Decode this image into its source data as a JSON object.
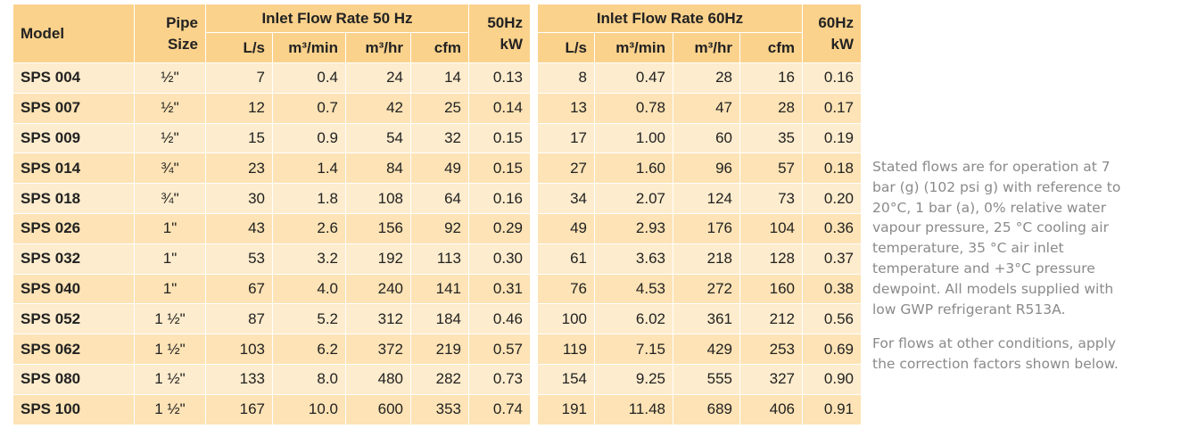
{
  "table": {
    "header": {
      "model": "Model",
      "pipe_size": "Pipe Size",
      "group_50": "Inlet Flow Rate 50 Hz",
      "kw_50": "50Hz kW",
      "group_60": "Inlet Flow Rate 60Hz",
      "kw_60": "60Hz kW",
      "units_50": [
        "L/s",
        "m³/min",
        "m³/hr",
        "cfm"
      ],
      "units_60": [
        "L/s",
        "m³/min",
        "m³/hr",
        "cfm"
      ]
    },
    "rows": [
      [
        "SPS 004",
        "½\"",
        "7",
        "0.4",
        "24",
        "14",
        "0.13",
        "8",
        "0.47",
        "28",
        "16",
        "0.16"
      ],
      [
        "SPS 007",
        "½\"",
        "12",
        "0.7",
        "42",
        "25",
        "0.14",
        "13",
        "0.78",
        "47",
        "28",
        "0.17"
      ],
      [
        "SPS 009",
        "½\"",
        "15",
        "0.9",
        "54",
        "32",
        "0.15",
        "17",
        "1.00",
        "60",
        "35",
        "0.19"
      ],
      [
        "SPS 014",
        "¾\"",
        "23",
        "1.4",
        "84",
        "49",
        "0.15",
        "27",
        "1.60",
        "96",
        "57",
        "0.18"
      ],
      [
        "SPS 018",
        "¾\"",
        "30",
        "1.8",
        "108",
        "64",
        "0.16",
        "34",
        "2.07",
        "124",
        "73",
        "0.20"
      ],
      [
        "SPS 026",
        "1\"",
        "43",
        "2.6",
        "156",
        "92",
        "0.29",
        "49",
        "2.93",
        "176",
        "104",
        "0.36"
      ],
      [
        "SPS 032",
        "1\"",
        "53",
        "3.2",
        "192",
        "113",
        "0.30",
        "61",
        "3.63",
        "218",
        "128",
        "0.37"
      ],
      [
        "SPS 040",
        "1\"",
        "67",
        "4.0",
        "240",
        "141",
        "0.31",
        "76",
        "4.53",
        "272",
        "160",
        "0.38"
      ],
      [
        "SPS 052",
        "1 ½\"",
        "87",
        "5.2",
        "312",
        "184",
        "0.46",
        "100",
        "6.02",
        "361",
        "212",
        "0.56"
      ],
      [
        "SPS 062",
        "1 ½\"",
        "103",
        "6.2",
        "372",
        "219",
        "0.57",
        "119",
        "7.15",
        "429",
        "253",
        "0.69"
      ],
      [
        "SPS 080",
        "1 ½\"",
        "133",
        "8.0",
        "480",
        "282",
        "0.73",
        "154",
        "9.25",
        "555",
        "327",
        "0.90"
      ],
      [
        "SPS 100",
        "1 ½\"",
        "167",
        "10.0",
        "600",
        "353",
        "0.74",
        "191",
        "11.48",
        "689",
        "406",
        "0.91"
      ]
    ]
  },
  "notes": [
    "Stated flows are for operation at 7 bar (g) (102 psi g) with reference to 20°C, 1 bar (a), 0% relative water vapour pressure, 25 °C cooling air temperature, 35 °C air inlet temperature and +3°C pressure dewpoint. All models supplied with low GWP refrigerant R513A.",
    "For flows at other conditions, apply the correction factors shown below."
  ]
}
